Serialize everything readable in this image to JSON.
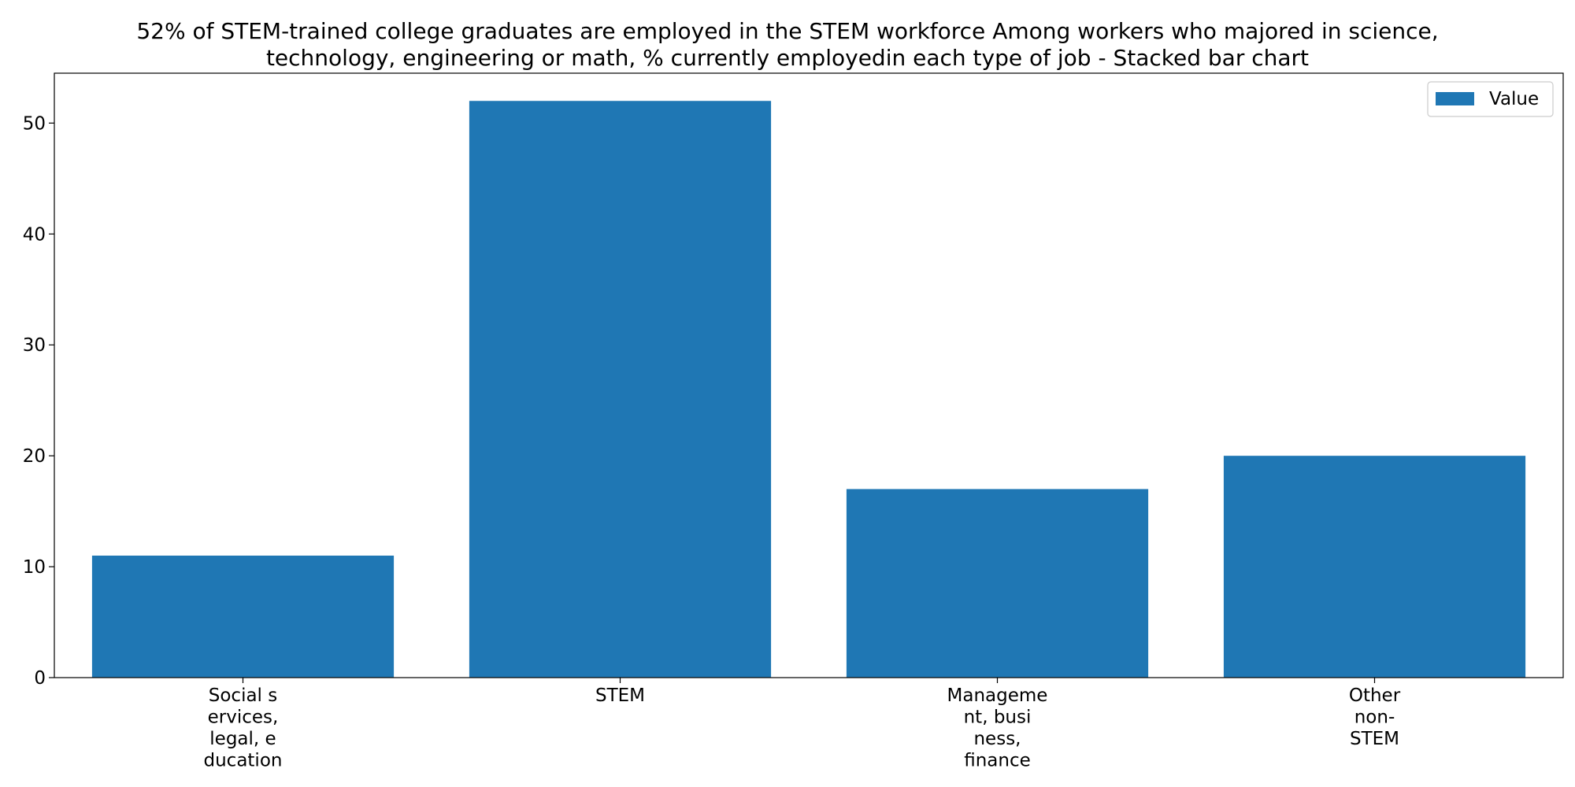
{
  "chart_data": {
    "type": "bar",
    "title_lines": [
      "52% of STEM-trained college graduates are employed in the STEM workforce Among workers who majored in science,",
      "technology, engineering or math, % currently employedin each type of job  - Stacked bar chart"
    ],
    "categories": [
      [
        "Social s",
        "ervices,",
        "legal, e",
        "ducation"
      ],
      [
        "STEM"
      ],
      [
        "Manageme",
        "nt, busi",
        "ness,",
        "finance"
      ],
      [
        "Other",
        "non-",
        "STEM"
      ]
    ],
    "series": [
      {
        "name": "Value",
        "values": [
          11,
          52,
          17,
          20
        ]
      }
    ],
    "ylim": [
      0,
      54.5
    ],
    "yticks": [
      0,
      10,
      20,
      30,
      40,
      50
    ],
    "xlabel": "",
    "ylabel": "",
    "grid": false,
    "legend_position": "top-right",
    "bar_color": "#1f77b4"
  }
}
